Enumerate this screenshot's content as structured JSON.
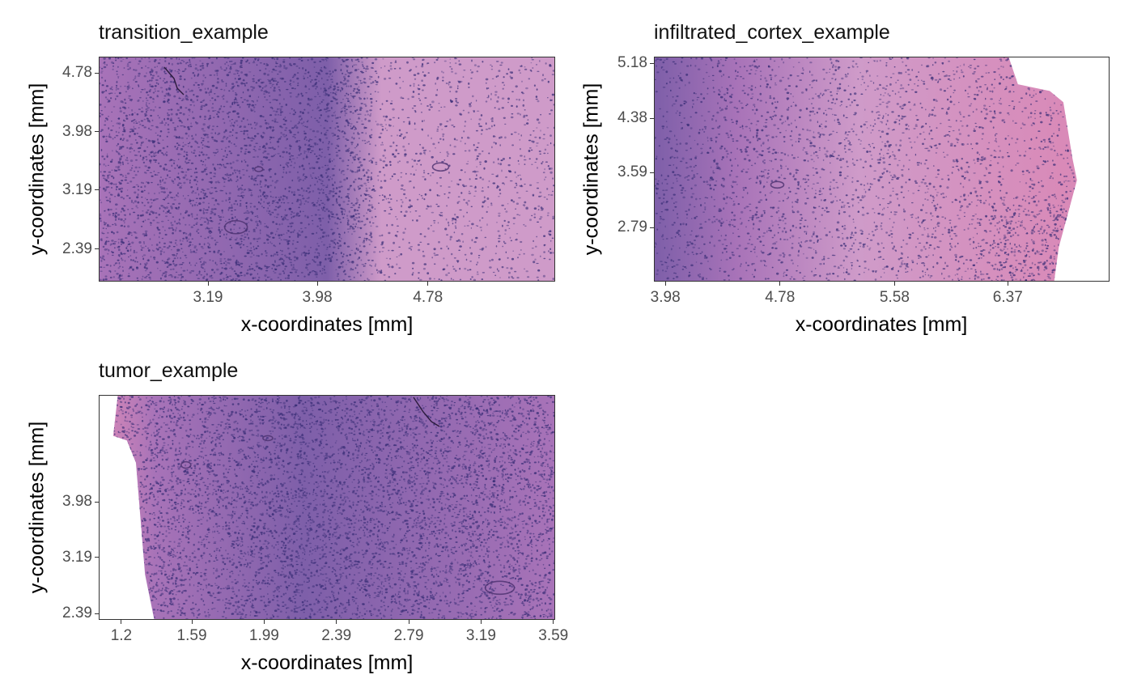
{
  "colors": {
    "tissue_dark": "#7e5fa9",
    "tissue_mid": "#a873b8",
    "tissue_light": "#cf9bc9",
    "tissue_pink": "#d98ab8",
    "nuclei": "#3b2f78",
    "background": "#ffffff"
  },
  "chart_data": [
    {
      "type": "image",
      "title": "transition_example",
      "xlabel": "x-coordinates [mm]",
      "ylabel": "y-coordinates [mm]",
      "xlim": [
        2.4,
        5.7
      ],
      "ylim": [
        1.95,
        5.0
      ],
      "x_ticks": [
        "3.19",
        "3.98",
        "4.78"
      ],
      "y_ticks": [
        "4.78",
        "3.98",
        "3.19",
        "2.39"
      ]
    },
    {
      "type": "image",
      "title": "infiltrated_cortex_example",
      "xlabel": "x-coordinates [mm]",
      "ylabel": "y-coordinates [mm]",
      "xlim": [
        3.9,
        7.08
      ],
      "ylim": [
        2.0,
        5.28
      ],
      "x_ticks": [
        "3.98",
        "4.78",
        "5.58",
        "6.37"
      ],
      "y_ticks": [
        "5.18",
        "4.38",
        "3.59",
        "2.79"
      ]
    },
    {
      "type": "image",
      "title": "tumor_example",
      "xlabel": "x-coordinates [mm]",
      "ylabel": "y-coordinates [mm]",
      "xlim": [
        1.075,
        3.6
      ],
      "ylim": [
        2.3,
        5.5
      ],
      "x_ticks": [
        "1.2",
        "1.59",
        "1.99",
        "2.39",
        "2.79",
        "3.19",
        "3.59"
      ],
      "y_ticks": [
        "3.98",
        "3.19",
        "2.39"
      ]
    }
  ]
}
